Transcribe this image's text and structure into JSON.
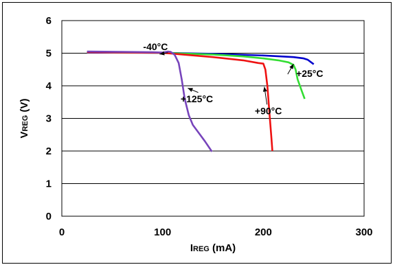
{
  "chart_data": {
    "type": "line",
    "xlim": [
      0,
      300
    ],
    "ylim": [
      0,
      6
    ],
    "x_ticks": [
      "0",
      "100",
      "200",
      "300"
    ],
    "y_ticks": [
      "0",
      "1",
      "2",
      "3",
      "4",
      "5",
      "6"
    ],
    "xlabel": {
      "prefix": "I",
      "sub": "REG",
      "suffix": " (mA)"
    },
    "ylabel": {
      "prefix": "V",
      "sub": "REG",
      "suffix": " (V)"
    },
    "grid": "horizontal",
    "legend": "none",
    "series": [
      {
        "name": "-40°C",
        "color": "#0000cc",
        "points": [
          [
            25,
            5.02
          ],
          [
            100,
            5.01
          ],
          [
            150,
            4.98
          ],
          [
            200,
            4.93
          ],
          [
            230,
            4.88
          ],
          [
            240,
            4.84
          ],
          [
            244,
            4.8
          ],
          [
            250,
            4.66
          ]
        ]
      },
      {
        "name": "+25°C",
        "color": "#33dd33",
        "points": [
          [
            25,
            5.03
          ],
          [
            100,
            5.01
          ],
          [
            150,
            4.96
          ],
          [
            180,
            4.9
          ],
          [
            200,
            4.84
          ],
          [
            215,
            4.78
          ],
          [
            225,
            4.72
          ],
          [
            230,
            4.64
          ],
          [
            232,
            4.5
          ],
          [
            234,
            4.2
          ],
          [
            238,
            3.85
          ],
          [
            241,
            3.6
          ]
        ]
      },
      {
        "name": "+90°C",
        "color": "#ee1111",
        "points": [
          [
            25,
            5.03
          ],
          [
            70,
            5.02
          ],
          [
            100,
            5.01
          ],
          [
            120,
            4.96
          ],
          [
            150,
            4.88
          ],
          [
            180,
            4.78
          ],
          [
            195,
            4.7
          ],
          [
            200,
            4.68
          ],
          [
            202,
            4.5
          ],
          [
            204,
            4.0
          ],
          [
            206,
            3.2
          ],
          [
            208,
            2.4
          ],
          [
            209,
            2.0
          ]
        ]
      },
      {
        "name": "+125°C",
        "color": "#7744bb",
        "points": [
          [
            25,
            5.05
          ],
          [
            60,
            5.04
          ],
          [
            90,
            5.03
          ],
          [
            100,
            5.02
          ],
          [
            105,
            5.05
          ],
          [
            108,
            5.04
          ],
          [
            112,
            4.95
          ],
          [
            116,
            4.7
          ],
          [
            119,
            4.2
          ],
          [
            122,
            3.6
          ],
          [
            126,
            3.1
          ],
          [
            130,
            2.8
          ],
          [
            136,
            2.55
          ],
          [
            142,
            2.3
          ],
          [
            149,
            1.98
          ]
        ]
      }
    ],
    "annotations": [
      {
        "text": "-40°C",
        "x": 93,
        "y": 5.1,
        "target_x": 97,
        "target_y": 4.97,
        "series": 0
      },
      {
        "text": "+25°C",
        "x": 246,
        "y": 4.27,
        "target_x": 230,
        "target_y": 4.67,
        "series": 1
      },
      {
        "text": "+90°C",
        "x": 205,
        "y": 3.13,
        "target_x": 201,
        "target_y": 3.97,
        "series": 2
      },
      {
        "text": "+125°C",
        "x": 134,
        "y": 3.5,
        "target_x": 125,
        "target_y": 3.93,
        "series": 3
      }
    ]
  }
}
